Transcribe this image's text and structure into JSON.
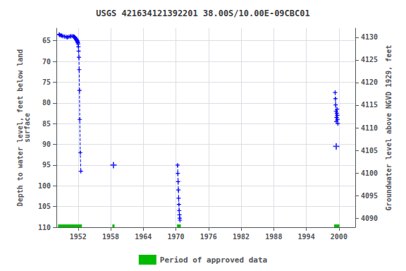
{
  "chart_data": {
    "type": "line",
    "title": "USGS 421634121392201 38.00S/10.00E-09CBC01",
    "ylabel": "Depth to water level, feet below land\nsurface",
    "y2label": "Groundwater level above NGVD 1929, feet",
    "xlim": [
      1948,
      2003
    ],
    "xticks": [
      1952,
      1958,
      1964,
      1970,
      1976,
      1982,
      1988,
      1994,
      2000
    ],
    "ylim": [
      110,
      62
    ],
    "yticks": [
      65,
      70,
      75,
      80,
      85,
      90,
      95,
      100,
      105,
      110
    ],
    "y2lim": [
      4088,
      4132
    ],
    "y2ticks": [
      4090,
      4095,
      4100,
      4105,
      4110,
      4115,
      4120,
      4125,
      4130
    ],
    "grid": true,
    "legend": "bottom",
    "series": [
      {
        "color": "#0000ff",
        "line_style": "dashed",
        "marker": "+",
        "x": [
          1948.5,
          1948.6,
          1948.8,
          1949.0,
          1949.2,
          1949.5,
          1949.8,
          1950.0,
          1950.2,
          1950.5,
          1950.7,
          1951.0,
          1951.2,
          1951.3,
          1951.4,
          1951.45,
          1951.5,
          1951.55,
          1951.6,
          1951.65,
          1951.7,
          1951.75,
          1951.8,
          1951.85,
          1951.9,
          1951.95,
          1952.0,
          1952.05,
          1952.1,
          1952.15,
          1952.2,
          1952.25,
          1952.3,
          1952.4,
          1952.5
        ],
        "values": [
          63.5,
          63.6,
          63.7,
          63.8,
          63.9,
          64.0,
          64.1,
          64.2,
          64.1,
          64.0,
          63.9,
          63.9,
          64.0,
          64.1,
          64.2,
          64.3,
          64.4,
          64.5,
          64.6,
          64.7,
          64.8,
          64.9,
          65.0,
          65.1,
          65.3,
          65.5,
          65.8,
          66.5,
          67.5,
          69.0,
          72.0,
          77.0,
          84.0,
          92.0,
          96.5
        ]
      },
      {
        "color": "#0000ff",
        "line_style": "dashed",
        "marker": "+",
        "x": [
          1970.3,
          1970.35,
          1970.4,
          1970.45,
          1970.5,
          1970.55,
          1970.6,
          1970.65,
          1970.7,
          1970.75
        ],
        "values": [
          95.0,
          97.0,
          99.0,
          101.0,
          103.0,
          104.5,
          106.0,
          107.0,
          107.8,
          108.3
        ]
      },
      {
        "color": "#0000ff",
        "line_style": "dashed",
        "marker": "+",
        "x": [
          1999.3,
          1999.35,
          1999.4,
          1999.45,
          1999.5,
          1999.55,
          1999.6,
          1999.65,
          1999.7,
          1999.75,
          1999.8
        ],
        "values": [
          77.5,
          79.0,
          80.5,
          82.0,
          84.5,
          83.5,
          82.5,
          81.5,
          83.0,
          84.0,
          85.0
        ]
      },
      {
        "type": "scatter",
        "color": "#0000ff",
        "marker": "+",
        "x": [
          1958.5,
          1999.5
        ],
        "values": [
          95.0,
          90.5
        ]
      }
    ],
    "approved_periods": {
      "name": "Period of approved data",
      "color": "#00bb00",
      "ranges": [
        [
          1948.3,
          1952.7
        ],
        [
          1958.3,
          1958.7
        ],
        [
          1970.2,
          1970.9
        ],
        [
          1999.1,
          2000.1
        ]
      ]
    }
  }
}
